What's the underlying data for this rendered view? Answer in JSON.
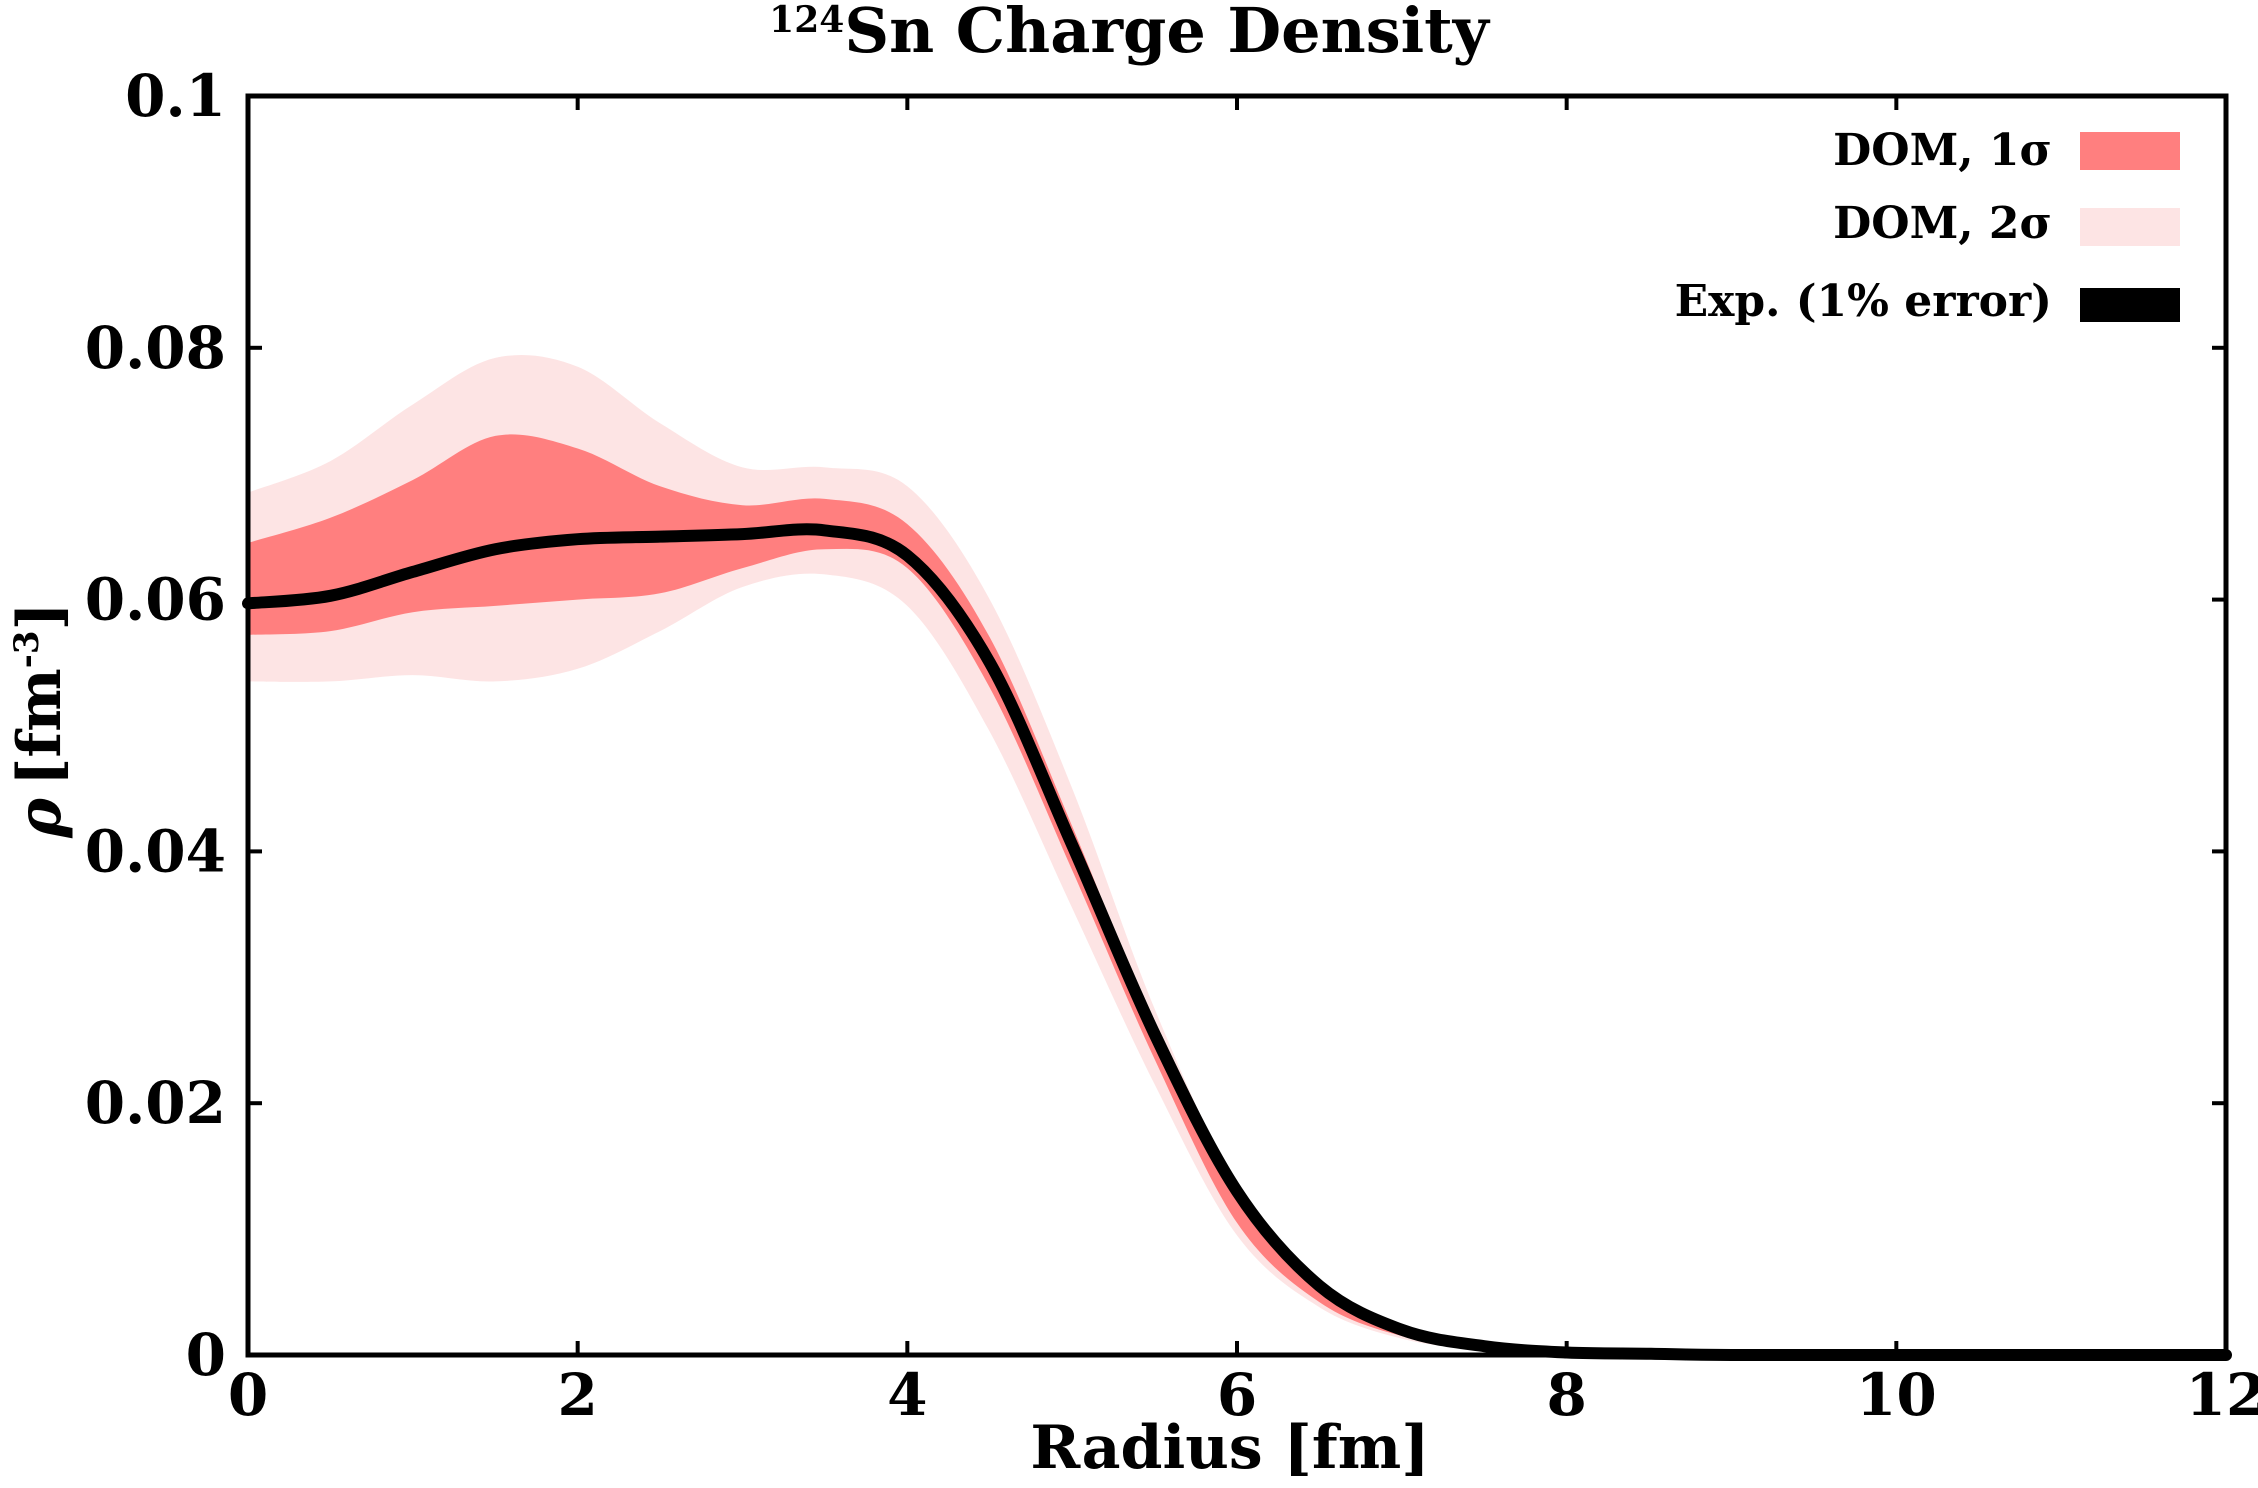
{
  "chart_data": {
    "type": "area",
    "title_sup": "124",
    "title_main": "Sn Charge Density",
    "xlabel": "Radius [fm]",
    "ylabel_sym": "ρ",
    "ylabel_unit": "[fm",
    "ylabel_sup": "-3",
    "ylabel_close": "]",
    "xlim": [
      0,
      12
    ],
    "ylim": [
      0,
      0.1
    ],
    "xticks": [
      0,
      2,
      4,
      6,
      8,
      10,
      12
    ],
    "xtick_labels": [
      "0",
      "2",
      "4",
      "6",
      "8",
      "10",
      "12"
    ],
    "yticks": [
      0,
      0.02,
      0.04,
      0.06,
      0.08,
      0.1
    ],
    "ytick_labels": [
      "0",
      "0.02",
      "0.04",
      "0.06",
      "0.08",
      "0.1"
    ],
    "legend_position": "top-right",
    "legend": [
      {
        "label": "DOM, 1σ",
        "color": "#ff7f7f"
      },
      {
        "label": "DOM, 2σ",
        "color": "#fde4e4"
      },
      {
        "label": "Exp. (1% error)",
        "color": "#000000"
      }
    ],
    "x": [
      0,
      0.5,
      1,
      1.5,
      2,
      2.5,
      3,
      3.5,
      4,
      4.5,
      5,
      5.5,
      6,
      6.5,
      7,
      7.5,
      8,
      8.5,
      9,
      10,
      11,
      12
    ],
    "series": [
      {
        "name": "DOM, 2σ",
        "color": "#fde4e4",
        "lower": [
          0.0535,
          0.0535,
          0.054,
          0.0535,
          0.0545,
          0.0575,
          0.061,
          0.062,
          0.0595,
          0.0495,
          0.0355,
          0.0215,
          0.0095,
          0.0038,
          0.0013,
          0.0004,
          0.0001,
          0.0,
          0.0,
          0.0,
          0.0,
          0.0
        ],
        "upper": [
          0.0685,
          0.071,
          0.0755,
          0.0792,
          0.0785,
          0.074,
          0.0705,
          0.0705,
          0.069,
          0.06,
          0.045,
          0.0275,
          0.0135,
          0.0058,
          0.0022,
          0.0008,
          0.0003,
          0.0001,
          0.0,
          0.0,
          0.0,
          0.0
        ]
      },
      {
        "name": "DOM, 1σ",
        "color": "#ff7f7f",
        "lower": [
          0.0572,
          0.0575,
          0.059,
          0.0595,
          0.06,
          0.0605,
          0.0625,
          0.064,
          0.0625,
          0.053,
          0.0385,
          0.0235,
          0.0105,
          0.0042,
          0.0015,
          0.0005,
          0.0001,
          0.0,
          0.0,
          0.0,
          0.0,
          0.0
        ],
        "upper": [
          0.0645,
          0.0665,
          0.0695,
          0.073,
          0.072,
          0.069,
          0.0675,
          0.068,
          0.066,
          0.057,
          0.042,
          0.026,
          0.0125,
          0.0053,
          0.0019,
          0.0007,
          0.0002,
          0.0001,
          0.0,
          0.0,
          0.0,
          0.0
        ]
      },
      {
        "name": "Exp. (1% error)",
        "color": "#000000",
        "values": [
          0.0597,
          0.0603,
          0.0622,
          0.064,
          0.0648,
          0.065,
          0.0652,
          0.0655,
          0.0635,
          0.055,
          0.0405,
          0.0255,
          0.013,
          0.0055,
          0.002,
          0.0007,
          0.0002,
          0.0001,
          0.0,
          0.0,
          0.0,
          0.0
        ]
      }
    ]
  }
}
